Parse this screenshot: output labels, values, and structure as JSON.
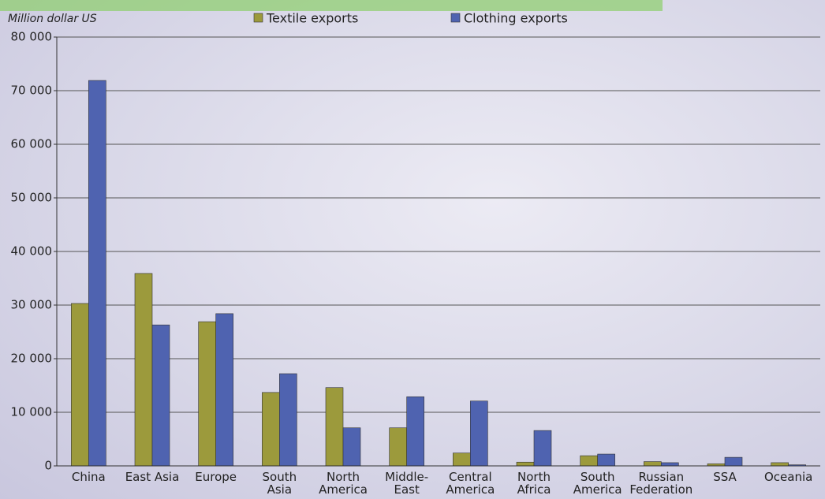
{
  "chart_data": {
    "type": "bar",
    "y_label": "Million dollar US",
    "categories": [
      "China",
      "East Asia",
      "Europe",
      "South\nAsia",
      "North\nAmerica",
      "Middle-\nEast",
      "Central\nAmerica",
      "North\nAfrica",
      "South\nAmerica",
      "Russian\nFederation",
      "SSA",
      "Oceania"
    ],
    "series": [
      {
        "name": "Textile exports",
        "color": "#9c9a3c",
        "values": [
          30300,
          35900,
          26900,
          13700,
          14600,
          7100,
          2400,
          700,
          1900,
          800,
          400,
          600
        ]
      },
      {
        "name": "Clothing exports",
        "color": "#4f63b0",
        "values": [
          71900,
          26300,
          28400,
          17200,
          7100,
          12900,
          12100,
          6600,
          2200,
          600,
          1600,
          200
        ]
      }
    ],
    "ylim": [
      0,
      80000
    ],
    "yticks": [
      0,
      {
        "value": 10000,
        "label": "10 000"
      },
      {
        "value": 20000,
        "label": "20 000"
      },
      {
        "value": 30000,
        "label": "30 000"
      },
      {
        "value": 40000,
        "label": "40 000"
      },
      {
        "value": 50000,
        "label": "50 000"
      },
      {
        "value": 60000,
        "label": "60 000"
      },
      {
        "value": 70000,
        "label": "70 000"
      },
      {
        "value": 80000,
        "label": "80 000"
      }
    ],
    "grid": true
  }
}
